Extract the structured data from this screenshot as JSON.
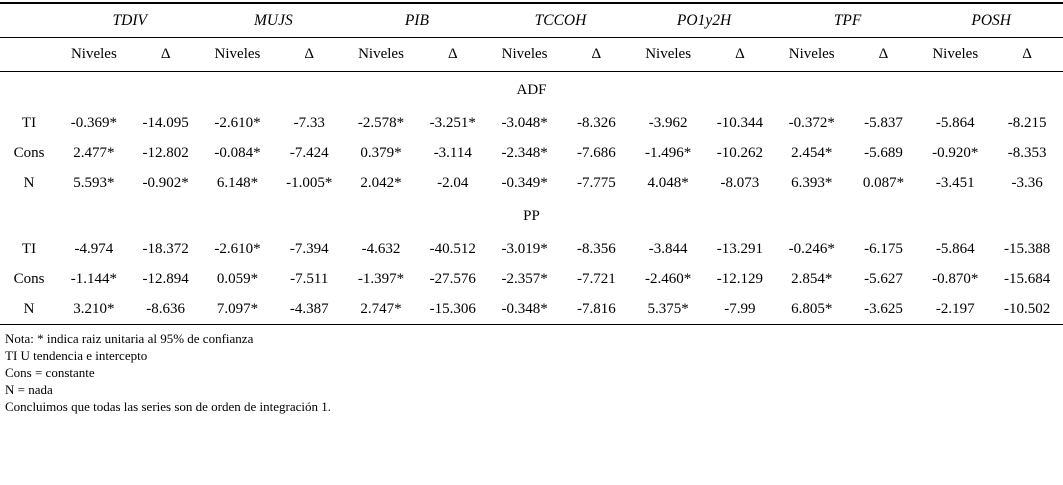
{
  "table": {
    "groups": [
      "TDIV",
      "MUJS",
      "PIB",
      "TCCOH",
      "PO1y2H",
      "TPF",
      "POSH"
    ],
    "subheaders": [
      "Niveles",
      "Δ"
    ],
    "sections": [
      {
        "title": "ADF",
        "rows": [
          {
            "label": "TI",
            "values": [
              "-0.369*",
              "-14.095",
              "-2.610*",
              "-7.33",
              "-2.578*",
              "-3.251*",
              "-3.048*",
              "-8.326",
              "-3.962",
              "-10.344",
              "-0.372*",
              "-5.837",
              "-5.864",
              "-8.215"
            ]
          },
          {
            "label": "Cons",
            "values": [
              "2.477*",
              "-12.802",
              "-0.084*",
              "-7.424",
              "0.379*",
              "-3.114",
              "-2.348*",
              "-7.686",
              "-1.496*",
              "-10.262",
              "2.454*",
              "-5.689",
              "-0.920*",
              "-8.353"
            ]
          },
          {
            "label": "N",
            "values": [
              "5.593*",
              "-0.902*",
              "6.148*",
              "-1.005*",
              "2.042*",
              "-2.04",
              "-0.349*",
              "-7.775",
              "4.048*",
              "-8.073",
              "6.393*",
              "0.087*",
              "-3.451",
              "-3.36"
            ]
          }
        ]
      },
      {
        "title": "PP",
        "rows": [
          {
            "label": "TI",
            "values": [
              "-4.974",
              "-18.372",
              "-2.610*",
              "-7.394",
              "-4.632",
              "-40.512",
              "-3.019*",
              "-8.356",
              "-3.844",
              "-13.291",
              "-0.246*",
              "-6.175",
              "-5.864",
              "-15.388"
            ]
          },
          {
            "label": "Cons",
            "values": [
              "-1.144*",
              "-12.894",
              "0.059*",
              "-7.511",
              "-1.397*",
              "-27.576",
              "-2.357*",
              "-7.721",
              "-2.460*",
              "-12.129",
              "2.854*",
              "-5.627",
              "-0.870*",
              "-15.684"
            ]
          },
          {
            "label": "N",
            "values": [
              "3.210*",
              "-8.636",
              "7.097*",
              "-4.387",
              "2.747*",
              "-15.306",
              "-0.348*",
              "-7.816",
              "5.375*",
              "-7.99",
              "6.805*",
              "-3.625",
              "-2.197",
              "-10.502"
            ]
          }
        ]
      }
    ],
    "notes": [
      "Nota: * indica raiz unitaria al 95% de confianza",
      "TI U tendencia e intercepto",
      "Cons = constante",
      "N = nada",
      "Concluimos que todas las series son de orden de integración 1."
    ]
  }
}
